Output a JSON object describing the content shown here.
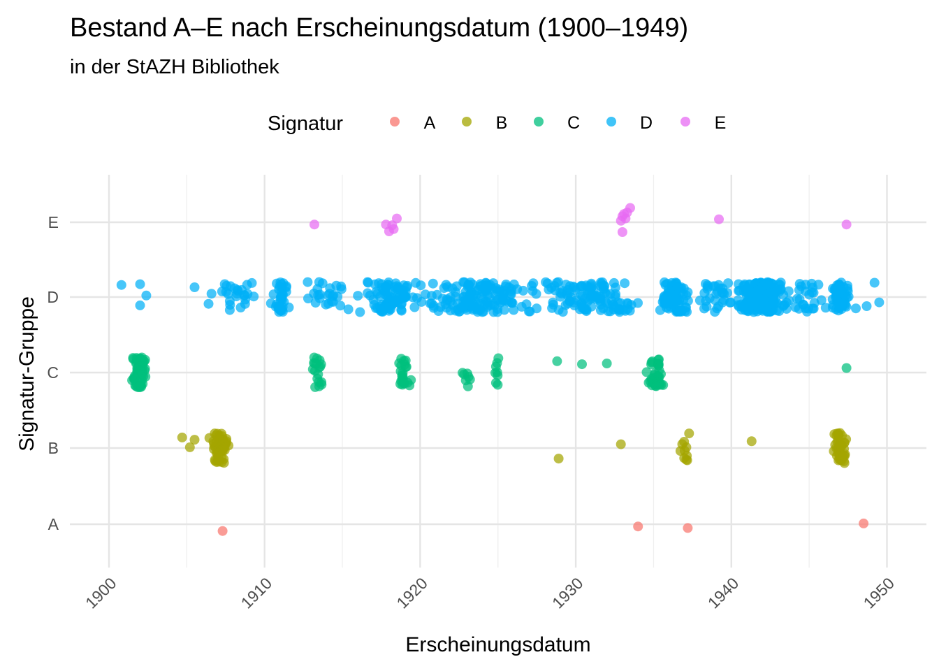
{
  "chart_data": {
    "type": "scatter",
    "title": "Bestand A–E nach Erscheinungsdatum (1900–1949)",
    "subtitle": "in der StAZH Bibliothek",
    "xlabel": "Erscheinungsdatum",
    "ylabel": "Signatur-Gruppe",
    "xlim": [
      1899.4,
      1952.4
    ],
    "x_ticks": [
      "1900",
      "1910",
      "1920",
      "1930",
      "1940",
      "1950"
    ],
    "y_categories": [
      "A",
      "B",
      "C",
      "D",
      "E"
    ],
    "grid": true,
    "legend": {
      "title": "Signatur",
      "position": "top",
      "entries": [
        {
          "label": "A",
          "color": "#F8766D"
        },
        {
          "label": "B",
          "color": "#A3A500"
        },
        {
          "label": "C",
          "color": "#00BF7D"
        },
        {
          "label": "D",
          "color": "#00B0F6"
        },
        {
          "label": "E",
          "color": "#E76BF3"
        }
      ]
    },
    "series": [
      {
        "name": "A",
        "color": "#F8766D",
        "points": [
          [
            1907.3,
            -0.09
          ],
          [
            1934.0,
            -0.03
          ],
          [
            1937.2,
            -0.05
          ],
          [
            1948.5,
            0.01
          ]
        ]
      },
      {
        "name": "B",
        "color": "#A3A500",
        "points": [
          [
            1904.7,
            0.14
          ],
          [
            1905.2,
            0.01
          ],
          [
            1905.5,
            0.11
          ],
          [
            1928.9,
            -0.14
          ],
          [
            1932.9,
            0.05
          ],
          [
            1941.3,
            0.09
          ]
        ],
        "clusters": [
          {
            "center": 1907.1,
            "spread": 0.55,
            "count": 50
          },
          {
            "center": 1937.0,
            "spread": 0.45,
            "count": 10
          },
          {
            "center": 1947.0,
            "spread": 0.45,
            "count": 40
          }
        ]
      },
      {
        "name": "C",
        "color": "#00BF7D",
        "points": [
          [
            1928.8,
            0.15
          ],
          [
            1930.4,
            0.11
          ],
          [
            1932.0,
            0.12
          ],
          [
            1947.4,
            0.06
          ]
        ],
        "clusters": [
          {
            "center": 1902.0,
            "spread": 0.5,
            "count": 60
          },
          {
            "center": 1913.3,
            "spread": 0.5,
            "count": 18
          },
          {
            "center": 1919.0,
            "spread": 0.45,
            "count": 22
          },
          {
            "center": 1923.0,
            "spread": 0.5,
            "count": 7
          },
          {
            "center": 1924.9,
            "spread": 0.3,
            "count": 8
          },
          {
            "center": 1935.2,
            "spread": 0.55,
            "count": 38
          }
        ]
      },
      {
        "name": "D",
        "color": "#00B0F6",
        "points": [
          [
            1900.8,
            0.16
          ],
          [
            1902.0,
            0.17
          ],
          [
            1902.0,
            -0.11
          ],
          [
            1902.4,
            0.02
          ],
          [
            1905.5,
            0.13
          ],
          [
            1906.4,
            -0.09
          ],
          [
            1948.0,
            -0.15
          ],
          [
            1948.7,
            -0.12
          ],
          [
            1949.2,
            0.19
          ],
          [
            1949.5,
            -0.07
          ]
        ],
        "clusters": [
          {
            "center": 1908.0,
            "spread": 1.5,
            "count": 25
          },
          {
            "center": 1911.0,
            "spread": 0.5,
            "count": 35
          },
          {
            "center": 1914.0,
            "spread": 1.8,
            "count": 25
          },
          {
            "center": 1918.0,
            "spread": 1.6,
            "count": 85
          },
          {
            "center": 1924.0,
            "spread": 3.6,
            "count": 160
          },
          {
            "center": 1931.0,
            "spread": 3.0,
            "count": 115
          },
          {
            "center": 1936.3,
            "spread": 0.9,
            "count": 80
          },
          {
            "center": 1939.0,
            "spread": 1.1,
            "count": 30
          },
          {
            "center": 1942.0,
            "spread": 1.5,
            "count": 200
          },
          {
            "center": 1944.8,
            "spread": 1.1,
            "count": 25
          },
          {
            "center": 1947.0,
            "spread": 0.55,
            "count": 60
          }
        ]
      },
      {
        "name": "E",
        "color": "#E76BF3",
        "points": [
          [
            1913.2,
            -0.03
          ],
          [
            1917.8,
            -0.03
          ],
          [
            1918.0,
            -0.12
          ],
          [
            1918.2,
            -0.04
          ],
          [
            1918.3,
            -0.09
          ],
          [
            1918.5,
            0.05
          ],
          [
            1932.9,
            0.02
          ],
          [
            1933.0,
            -0.13
          ],
          [
            1933.0,
            0.08
          ],
          [
            1933.1,
            0.11
          ],
          [
            1933.2,
            0.05
          ],
          [
            1933.3,
            0.13
          ],
          [
            1933.5,
            0.19
          ],
          [
            1939.2,
            0.04
          ],
          [
            1947.4,
            -0.03
          ]
        ]
      }
    ]
  }
}
